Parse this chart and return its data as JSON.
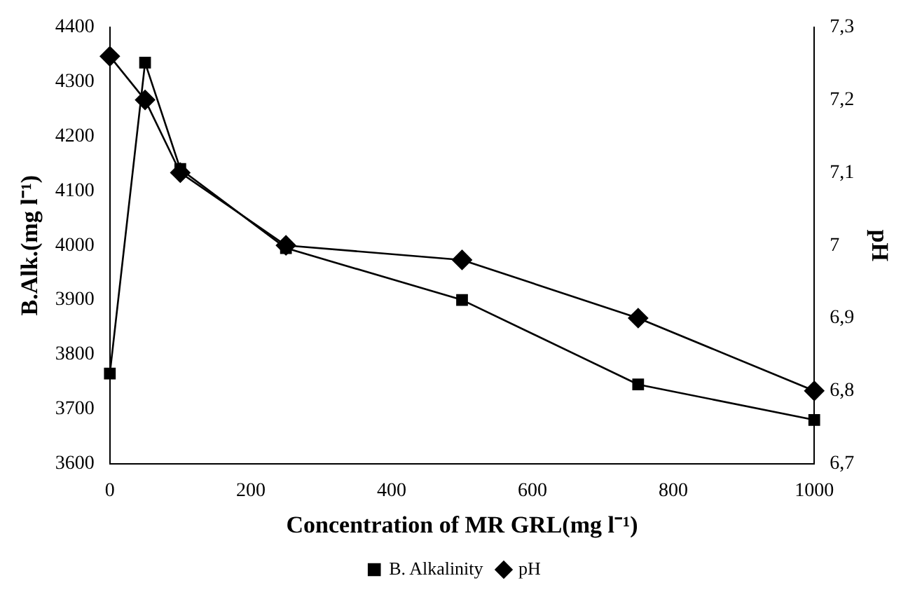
{
  "chart_data": {
    "type": "line",
    "xlabel": "Concentration of MR GRL(mg l⁻¹)",
    "ylabel": "B.Alk.(mg l⁻¹)",
    "y2label": "pH",
    "xlim": [
      0,
      1000
    ],
    "xticks": [
      0,
      200,
      400,
      600,
      800,
      1000
    ],
    "ylim": [
      3600,
      4400
    ],
    "yticks": [
      3600,
      3700,
      3800,
      3900,
      4000,
      4100,
      4200,
      4300,
      4400
    ],
    "y2lim": [
      6.7,
      7.3
    ],
    "y2ticks": [
      {
        "value": 6.7,
        "label": "6,7"
      },
      {
        "value": 6.8,
        "label": "6,8"
      },
      {
        "value": 6.9,
        "label": "6,9"
      },
      7,
      {
        "value": 7.1,
        "label": "7,1"
      },
      {
        "value": 7.2,
        "label": "7,2"
      },
      {
        "value": 7.3,
        "label": "7,3"
      }
    ],
    "x": [
      0,
      50,
      100,
      250,
      500,
      750,
      1000
    ],
    "series": [
      {
        "name": "B. Alkalinity",
        "color": "#000000",
        "marker": "square",
        "values": [
          3765,
          4335,
          4140,
          3995,
          3900,
          3745,
          3680
        ]
      },
      {
        "name": "pH",
        "color": "#000000",
        "marker": "diamond",
        "axis": "y2",
        "values": [
          7.26,
          7.2,
          7.1,
          7.0,
          6.98,
          6.9,
          6.8
        ]
      }
    ],
    "grid": false,
    "legend": "bottom",
    "line_style": "solid"
  }
}
